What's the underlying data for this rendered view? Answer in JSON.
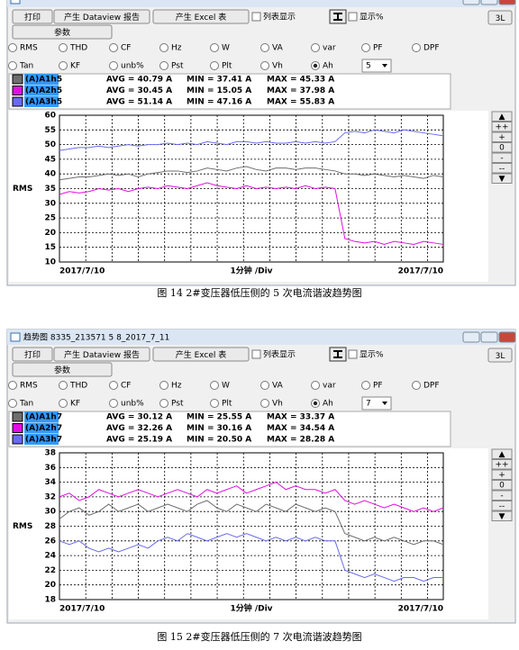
{
  "figures": [
    {
      "toolbar": {
        "print": "打印",
        "report": "产生 Dataview 报告",
        "excel": "产生 Excel 表",
        "list": "列表显示",
        "percent": "显示%",
        "layout": "3L"
      },
      "params": "参数",
      "radios_row1": [
        {
          "label": "RMS"
        },
        {
          "label": "THD"
        },
        {
          "label": "CF"
        },
        {
          "label": "Hz"
        },
        {
          "label": "W"
        },
        {
          "label": "VA"
        },
        {
          "label": "var"
        },
        {
          "label": "PF"
        },
        {
          "label": "DPF"
        }
      ],
      "radios_row2": [
        {
          "label": "Tan"
        },
        {
          "label": "KF"
        },
        {
          "label": "unb%"
        },
        {
          "label": "Pst"
        },
        {
          "label": "Plt"
        },
        {
          "label": "Vh"
        },
        {
          "label": "Ah",
          "checked": true
        }
      ],
      "select_value": "5",
      "side_buttons": [
        "▲",
        "++",
        "+",
        "0",
        "-",
        "--",
        "▼"
      ],
      "caption": "图 14    2#变压器低压侧的 5 次电流谐波趋势图"
    },
    {
      "window_title": "趋势图 8335_213571 5 8_2017_7_11",
      "toolbar": {
        "print": "打印",
        "report": "产生 Dataview 报告",
        "excel": "产生 Excel 表",
        "list": "列表显示",
        "percent": "显示%",
        "layout": "3L"
      },
      "params": "参数",
      "radios_row1": [
        {
          "label": "RMS"
        },
        {
          "label": "THD"
        },
        {
          "label": "CF"
        },
        {
          "label": "Hz"
        },
        {
          "label": "W"
        },
        {
          "label": "VA"
        },
        {
          "label": "var"
        },
        {
          "label": "PF"
        },
        {
          "label": "DPF"
        }
      ],
      "radios_row2": [
        {
          "label": "Tan"
        },
        {
          "label": "KF"
        },
        {
          "label": "unb%"
        },
        {
          "label": "Pst"
        },
        {
          "label": "Plt"
        },
        {
          "label": "Vh"
        },
        {
          "label": "Ah",
          "checked": true
        }
      ],
      "select_value": "7",
      "side_buttons": [
        "▲",
        "++",
        "+",
        "0",
        "-",
        "--",
        "▼"
      ],
      "caption": "图 15    2#变压器低压侧的 7 次电流谐波趋势图"
    }
  ],
  "chart_data": [
    {
      "type": "line",
      "ylabel": "RMS",
      "xlabel": "1分钟 /Div",
      "categories": [
        "2017/7/10",
        null,
        null,
        null,
        null,
        null,
        null,
        null,
        null,
        null,
        null,
        null,
        null,
        null,
        null,
        null,
        null,
        null,
        null,
        null,
        null,
        null,
        null,
        null,
        null,
        null,
        null,
        null,
        null,
        null,
        null,
        null,
        null,
        null,
        null,
        null,
        null,
        null,
        null,
        "2017/7/10"
      ],
      "ylim": [
        10,
        60
      ],
      "yticks": [
        10,
        15,
        20,
        25,
        30,
        35,
        40,
        45,
        50,
        55,
        60
      ],
      "grid": true,
      "series": [
        {
          "name": "(A)A1h5",
          "color": "#6e6e6e",
          "stats": [
            "AVG = 40.79 A",
            "MIN = 37.41 A",
            "MAX = 45.33 A"
          ],
          "values": [
            38,
            38.5,
            39,
            39,
            39.5,
            40,
            39.5,
            40,
            39,
            40,
            40.5,
            41,
            41,
            40.5,
            41,
            42,
            41.5,
            41,
            42,
            42.5,
            41.5,
            41,
            42,
            42,
            41.5,
            42,
            42,
            41.5,
            41,
            40,
            40,
            39.5,
            40,
            39.5,
            39,
            39.5,
            39,
            38.5,
            39.5,
            39
          ]
        },
        {
          "name": "(A)A2h5",
          "color": "#e010e0",
          "stats": [
            "AVG = 30.45 A",
            "MIN = 15.05 A",
            "MAX = 37.98 A"
          ],
          "values": [
            33,
            34,
            33.5,
            34,
            35,
            34.5,
            35,
            34,
            35,
            35.5,
            35,
            36,
            35.5,
            35,
            36,
            37,
            36,
            35.5,
            35,
            36,
            35,
            35.5,
            35,
            35.5,
            35,
            36,
            35,
            35.5,
            35,
            18,
            17,
            16.5,
            17,
            16,
            17,
            16.5,
            16,
            17,
            16.5,
            16
          ]
        },
        {
          "name": "(A)A3h5",
          "color": "#6a6af0",
          "stats": [
            "AVG = 51.14 A",
            "MIN = 47.16 A",
            "MAX = 55.83 A"
          ],
          "values": [
            48,
            48.5,
            49,
            49,
            49.5,
            49,
            49.5,
            50,
            49.5,
            50,
            50,
            50.5,
            50,
            50.5,
            50,
            51,
            50.5,
            50,
            51,
            51,
            50.5,
            51,
            50.5,
            50.5,
            51,
            50.5,
            51,
            50.5,
            51,
            54,
            54.5,
            54,
            55,
            54.5,
            54,
            55,
            54.5,
            54,
            53.5,
            53
          ]
        }
      ]
    },
    {
      "type": "line",
      "ylabel": "RMS",
      "xlabel": "1分钟 /Div",
      "categories": [
        "2017/7/10",
        null,
        null,
        null,
        null,
        null,
        null,
        null,
        null,
        null,
        null,
        null,
        null,
        null,
        null,
        null,
        null,
        null,
        null,
        null,
        null,
        null,
        null,
        null,
        null,
        null,
        null,
        null,
        null,
        null,
        null,
        null,
        null,
        null,
        null,
        null,
        null,
        null,
        null,
        "2017/7/10"
      ],
      "ylim": [
        18,
        38
      ],
      "yticks": [
        18,
        20,
        22,
        24,
        26,
        28,
        30,
        32,
        34,
        36,
        38
      ],
      "grid": true,
      "series": [
        {
          "name": "(A)A1h7",
          "color": "#6e6e6e",
          "stats": [
            "AVG = 30.12 A",
            "MIN = 25.55 A",
            "MAX = 33.37 A"
          ],
          "values": [
            29,
            30,
            30.5,
            29.5,
            30,
            31,
            30,
            30.5,
            31,
            30,
            30.5,
            31,
            30.5,
            30,
            31,
            31.5,
            30.5,
            30,
            31,
            30.5,
            30,
            31,
            30.5,
            30,
            31,
            30.5,
            30,
            30.5,
            30,
            27,
            26.5,
            26,
            26.5,
            26,
            26.5,
            26,
            25.5,
            26,
            26,
            25.5
          ]
        },
        {
          "name": "(A)A2h7",
          "color": "#e010e0",
          "stats": [
            "AVG = 32.26 A",
            "MIN = 30.16 A",
            "MAX = 34.54 A"
          ],
          "values": [
            32,
            32.5,
            31.5,
            32,
            33,
            32.5,
            32,
            32.5,
            33,
            32.5,
            32,
            32.5,
            33,
            32.5,
            32,
            33,
            32.5,
            33,
            33.5,
            32.5,
            33,
            33.5,
            34,
            33,
            33.5,
            33,
            33,
            32.5,
            33,
            31.5,
            31,
            31.5,
            31,
            30.5,
            31,
            30.5,
            30,
            30.5,
            30,
            30.5
          ]
        },
        {
          "name": "(A)A3h7",
          "color": "#6a6af0",
          "stats": [
            "AVG = 25.19 A",
            "MIN = 20.50 A",
            "MAX = 28.28 A"
          ],
          "values": [
            26,
            25.5,
            26,
            25,
            24.5,
            25,
            24.5,
            25,
            25.5,
            25,
            26,
            26.5,
            26,
            27,
            26.5,
            26,
            26.5,
            27,
            26.5,
            27,
            26.5,
            26,
            26.5,
            26,
            26.5,
            26,
            26.5,
            26,
            26,
            22,
            21.5,
            21,
            21.5,
            21,
            20.5,
            21,
            21,
            20.5,
            21,
            21
          ]
        }
      ]
    }
  ]
}
